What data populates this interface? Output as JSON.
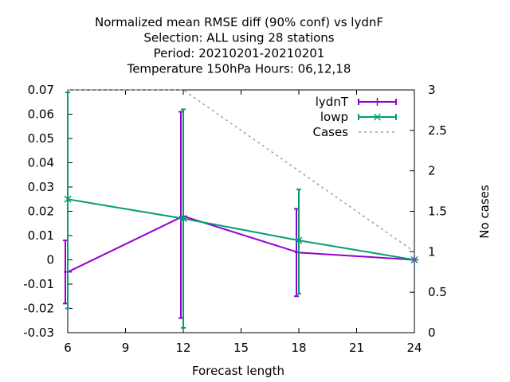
{
  "chart_data": {
    "type": "line",
    "title_lines": [
      "Normalized mean RMSE diff (90% conf) vs lydnF",
      "Selection: ALL using    28 stations",
      "Period: 20210201-20210201",
      "Temperature 150hPa   Hours:  06,12,18"
    ],
    "xlabel": "Forecast length",
    "ylabel": "",
    "y2label": "No cases",
    "xlim": [
      6,
      24
    ],
    "ylim": [
      -0.03,
      0.07
    ],
    "y2lim": [
      0,
      3
    ],
    "xticks": [
      6,
      9,
      12,
      15,
      18,
      21,
      24
    ],
    "yticks": [
      "-0.03",
      "-0.02",
      "-0.01",
      "0",
      "0.01",
      "0.02",
      "0.03",
      "0.04",
      "0.05",
      "0.06",
      "0.07"
    ],
    "y2ticks": [
      "0",
      "0.5",
      "1",
      "1.5",
      "2",
      "2.5",
      "3"
    ],
    "legend_position": "top-right",
    "series": [
      {
        "name": "lydnT",
        "color": "#9400d3",
        "marker": "plus",
        "x": [
          6,
          12,
          18,
          24
        ],
        "y": [
          -0.005,
          0.018,
          0.003,
          0.0
        ],
        "err_low": [
          -0.018,
          -0.024,
          -0.015,
          0.0
        ],
        "err_high": [
          0.008,
          0.061,
          0.021,
          0.0
        ]
      },
      {
        "name": "lowp",
        "color": "#009e73",
        "marker": "cross",
        "x": [
          6,
          12,
          18,
          24
        ],
        "y": [
          0.025,
          0.017,
          0.008,
          0.0
        ],
        "err_low": [
          -0.02,
          -0.028,
          -0.014,
          0.0
        ],
        "err_high": [
          0.069,
          0.062,
          0.029,
          0.0
        ]
      },
      {
        "name": "Cases",
        "color": "#a0a0a0",
        "dashed": true,
        "axis": "y2",
        "x": [
          6,
          12,
          18,
          24
        ],
        "y": [
          3,
          3,
          2,
          1
        ]
      }
    ]
  }
}
